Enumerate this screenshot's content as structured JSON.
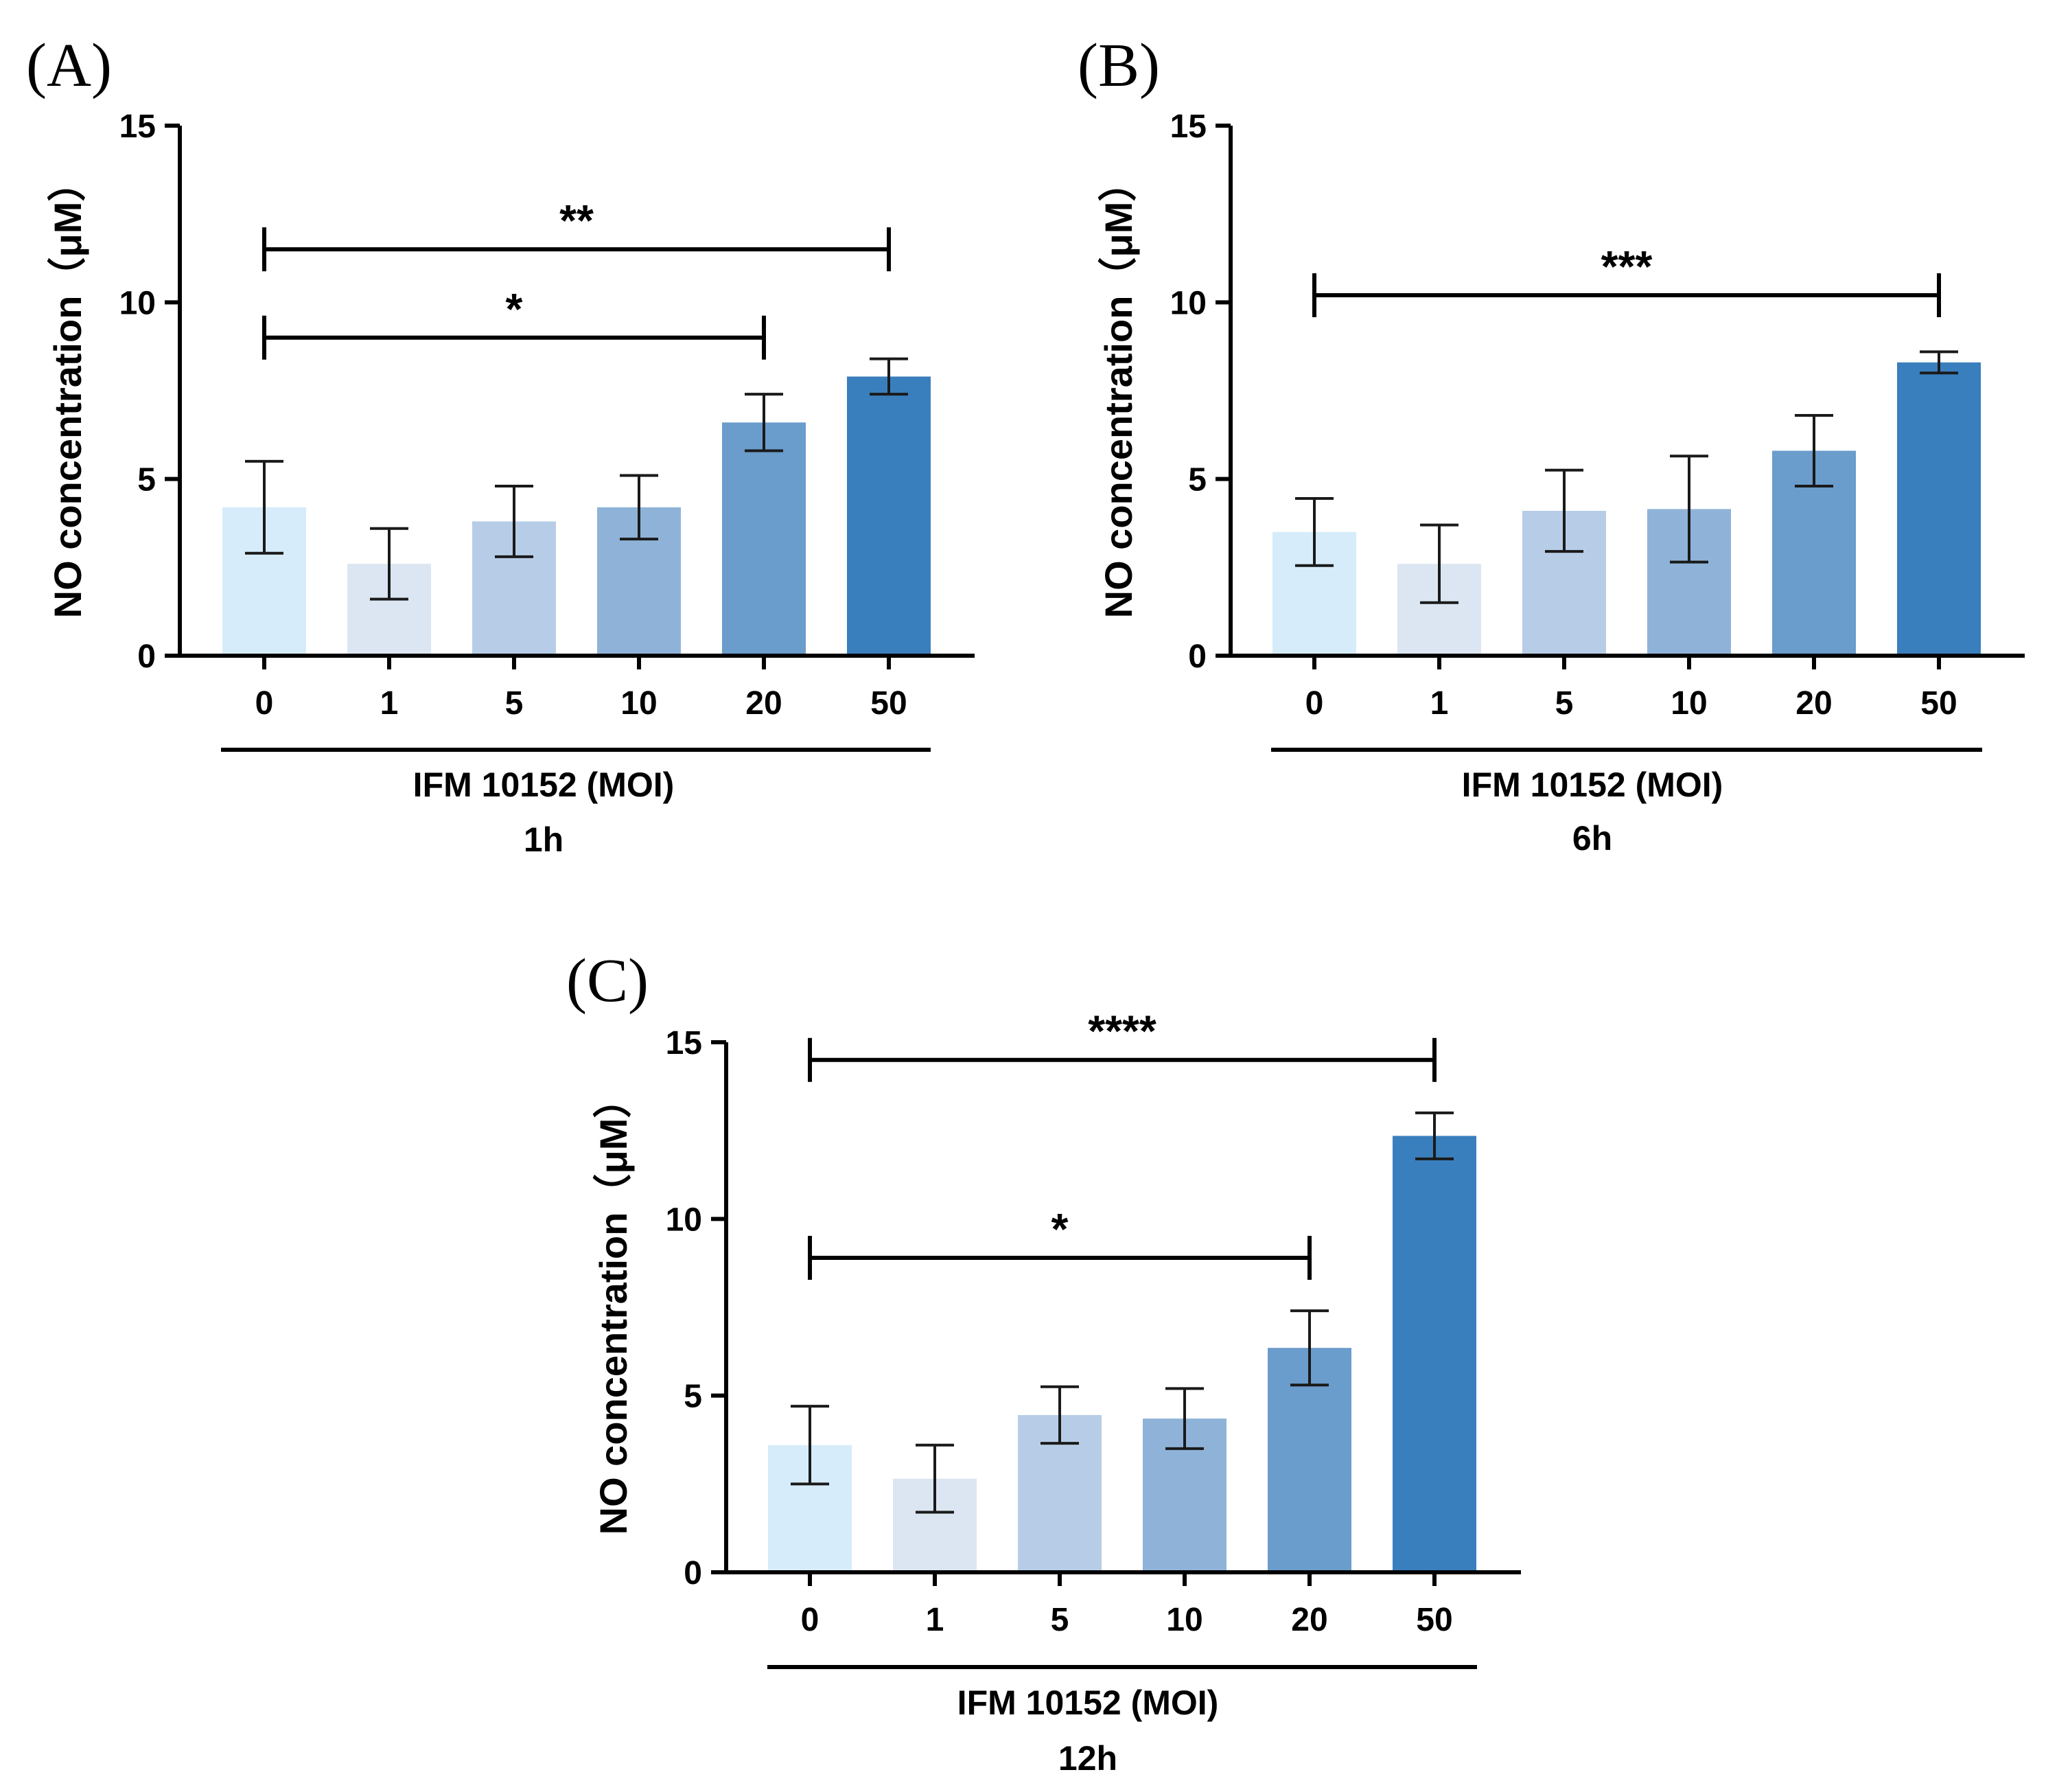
{
  "chart_data": [
    {
      "panel": "(A)",
      "type": "bar",
      "ylabel": "NO concentration（μM）",
      "xlabel": "IFM 10152 (MOI)",
      "time": "1h",
      "ylim": [
        0,
        15
      ],
      "yticks": [
        0,
        5,
        10,
        15
      ],
      "categories": [
        "0",
        "1",
        "5",
        "10",
        "20",
        "50"
      ],
      "values": [
        4.2,
        2.6,
        3.8,
        4.2,
        6.6,
        7.9
      ],
      "errors": [
        1.3,
        1.0,
        1.0,
        0.9,
        0.8,
        0.5
      ],
      "colors": [
        "#d6ecfa",
        "#dce6f2",
        "#b7cde7",
        "#8fb3d8",
        "#6a9ccc",
        "#3a7fbd"
      ],
      "significance": [
        {
          "from": "0",
          "to": "20",
          "label": "*",
          "level": 9.0
        },
        {
          "from": "0",
          "to": "50",
          "label": "**",
          "level": 11.5
        }
      ]
    },
    {
      "panel": "(B)",
      "type": "bar",
      "ylabel": "NO concentration（μM）",
      "xlabel": "IFM 10152 (MOI)",
      "time": "6h",
      "ylim": [
        0,
        15
      ],
      "yticks": [
        0,
        5,
        10,
        15
      ],
      "categories": [
        "0",
        "1",
        "5",
        "10",
        "20",
        "50"
      ],
      "values": [
        3.5,
        2.6,
        4.1,
        4.15,
        5.8,
        8.3
      ],
      "errors": [
        0.95,
        1.1,
        1.15,
        1.5,
        1.0,
        0.3
      ],
      "colors": [
        "#d6ecfa",
        "#dce6f2",
        "#b7cde7",
        "#8fb3d8",
        "#6a9ccc",
        "#3a7fbd"
      ],
      "significance": [
        {
          "from": "0",
          "to": "50",
          "label": "***",
          "level": 10.2
        }
      ]
    },
    {
      "panel": "(C)",
      "type": "bar",
      "ylabel": "NO concentration（μM）",
      "xlabel": "IFM 10152 (MOI)",
      "time": "12h",
      "ylim": [
        0,
        15
      ],
      "yticks": [
        0,
        5,
        10,
        15
      ],
      "categories": [
        "0",
        "1",
        "5",
        "10",
        "20",
        "50"
      ],
      "values": [
        3.6,
        2.65,
        4.45,
        4.35,
        6.35,
        12.35
      ],
      "errors": [
        1.1,
        0.95,
        0.8,
        0.85,
        1.05,
        0.65
      ],
      "colors": [
        "#d6ecfa",
        "#dce6f2",
        "#b7cde7",
        "#8fb3d8",
        "#6a9ccc",
        "#3a7fbd"
      ],
      "significance": [
        {
          "from": "0",
          "to": "20",
          "label": "*",
          "level": 8.9
        },
        {
          "from": "0",
          "to": "50",
          "label": "****",
          "level": 14.5
        }
      ]
    }
  ]
}
